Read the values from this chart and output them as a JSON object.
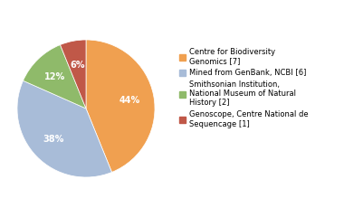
{
  "labels": [
    "Centre for Biodiversity\nGenomics [7]",
    "Mined from GenBank, NCBI [6]",
    "Smithsonian Institution,\nNational Museum of Natural\nHistory [2]",
    "Genoscope, Centre National de\nSequencage [1]"
  ],
  "values": [
    43,
    37,
    12,
    6
  ],
  "colors": [
    "#f0a050",
    "#a8bcd8",
    "#8fba6a",
    "#c05848"
  ],
  "startangle": 90,
  "background_color": "#ffffff",
  "pct_fontsize": 7,
  "legend_fontsize": 6.0
}
